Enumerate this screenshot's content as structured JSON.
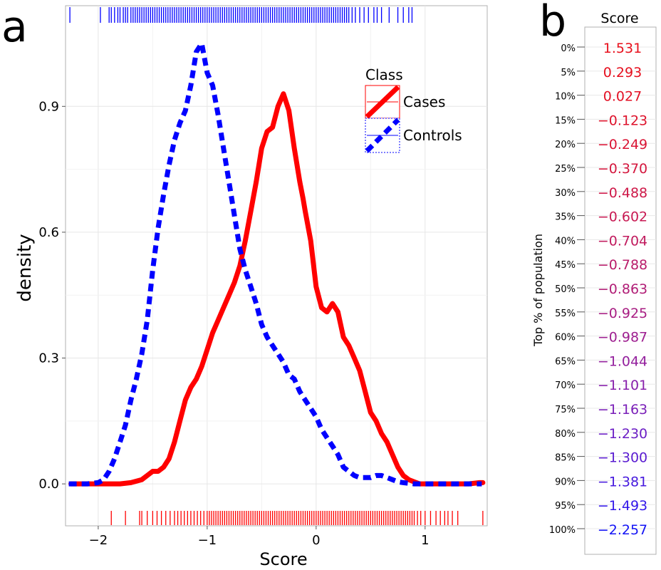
{
  "panel_a": {
    "label": "a",
    "chart_data": {
      "type": "line",
      "xlabel": "Score",
      "ylabel": "density",
      "xlim": [
        -2.3,
        1.57
      ],
      "ylim": [
        -0.1,
        1.14
      ],
      "xticks": [
        -2,
        -1,
        0,
        1
      ],
      "xtick_labels": [
        "−2",
        "−1",
        "0",
        "1"
      ],
      "yticks": [
        0.0,
        0.3,
        0.6,
        0.9
      ],
      "ytick_labels": [
        "0.0",
        "0.3",
        "0.6",
        "0.9"
      ],
      "grid": true,
      "legend": {
        "title": "Class",
        "position": "top-right",
        "entries": [
          {
            "label": "Cases",
            "color": "#ff0000",
            "style": "solid"
          },
          {
            "label": "Controls",
            "color": "#0000ff",
            "style": "dashed"
          }
        ]
      },
      "series": [
        {
          "name": "Cases",
          "color": "#ff0000",
          "style": "solid",
          "x": [
            -2.25,
            -2.0,
            -1.8,
            -1.7,
            -1.6,
            -1.55,
            -1.5,
            -1.45,
            -1.4,
            -1.35,
            -1.3,
            -1.25,
            -1.2,
            -1.15,
            -1.1,
            -1.05,
            -1.0,
            -0.95,
            -0.9,
            -0.85,
            -0.8,
            -0.75,
            -0.7,
            -0.65,
            -0.6,
            -0.55,
            -0.5,
            -0.45,
            -0.4,
            -0.35,
            -0.3,
            -0.25,
            -0.2,
            -0.15,
            -0.12,
            -0.1,
            -0.05,
            0.0,
            0.05,
            0.1,
            0.15,
            0.2,
            0.25,
            0.3,
            0.35,
            0.4,
            0.45,
            0.5,
            0.55,
            0.6,
            0.65,
            0.7,
            0.75,
            0.8,
            0.85,
            0.9,
            0.95,
            1.0,
            1.05,
            1.1,
            1.15,
            1.2,
            1.25,
            1.3,
            1.35,
            1.4,
            1.5,
            1.53
          ],
          "y": [
            0.0,
            0.0,
            0.0,
            0.003,
            0.01,
            0.02,
            0.03,
            0.03,
            0.04,
            0.06,
            0.1,
            0.15,
            0.2,
            0.23,
            0.25,
            0.28,
            0.32,
            0.36,
            0.39,
            0.42,
            0.45,
            0.48,
            0.52,
            0.58,
            0.65,
            0.72,
            0.8,
            0.84,
            0.85,
            0.9,
            0.93,
            0.89,
            0.8,
            0.72,
            0.68,
            0.65,
            0.58,
            0.47,
            0.42,
            0.41,
            0.43,
            0.41,
            0.35,
            0.33,
            0.3,
            0.27,
            0.22,
            0.17,
            0.15,
            0.12,
            0.1,
            0.07,
            0.04,
            0.02,
            0.01,
            0.005,
            0.0,
            0.0,
            0.0,
            0.0,
            0.0,
            0.0,
            0.0,
            0.0,
            0.0,
            0.0,
            0.003,
            0.003
          ]
        },
        {
          "name": "Controls",
          "color": "#0000ff",
          "style": "dashed",
          "x": [
            -2.27,
            -2.1,
            -2.0,
            -1.95,
            -1.9,
            -1.85,
            -1.8,
            -1.75,
            -1.7,
            -1.65,
            -1.6,
            -1.55,
            -1.5,
            -1.45,
            -1.4,
            -1.35,
            -1.3,
            -1.25,
            -1.2,
            -1.15,
            -1.1,
            -1.05,
            -1.0,
            -0.95,
            -0.9,
            -0.85,
            -0.8,
            -0.75,
            -0.7,
            -0.65,
            -0.6,
            -0.55,
            -0.5,
            -0.45,
            -0.4,
            -0.35,
            -0.3,
            -0.25,
            -0.2,
            -0.15,
            -0.1,
            -0.05,
            0.0,
            0.05,
            0.1,
            0.15,
            0.2,
            0.25,
            0.3,
            0.35,
            0.4,
            0.45,
            0.5,
            0.55,
            0.6,
            0.65,
            0.7,
            0.75,
            0.8,
            0.9,
            1.0,
            1.2,
            1.4,
            1.52
          ],
          "y": [
            0.0,
            0.0,
            0.003,
            0.01,
            0.03,
            0.06,
            0.1,
            0.14,
            0.2,
            0.25,
            0.31,
            0.39,
            0.51,
            0.61,
            0.69,
            0.76,
            0.82,
            0.86,
            0.89,
            0.95,
            1.03,
            1.05,
            0.98,
            0.95,
            0.88,
            0.8,
            0.72,
            0.64,
            0.56,
            0.51,
            0.47,
            0.43,
            0.38,
            0.35,
            0.33,
            0.31,
            0.29,
            0.26,
            0.25,
            0.22,
            0.2,
            0.18,
            0.16,
            0.13,
            0.11,
            0.09,
            0.07,
            0.04,
            0.03,
            0.02,
            0.015,
            0.015,
            0.015,
            0.02,
            0.02,
            0.015,
            0.01,
            0.005,
            0.003,
            0.0,
            0.0,
            0.0,
            0.0,
            0.0
          ]
        }
      ],
      "rug": {
        "Controls": [
          -2.26,
          -1.98,
          -1.9,
          -1.88,
          -1.85,
          -1.82,
          -1.8,
          -1.77,
          -1.75,
          -1.73,
          -1.7,
          -1.68,
          -1.66,
          -1.64,
          -1.62,
          -1.6,
          -1.58,
          -1.56,
          -1.54,
          -1.52,
          -1.5,
          -1.48,
          -1.46,
          -1.44,
          -1.42,
          -1.4,
          -1.38,
          -1.36,
          -1.34,
          -1.32,
          -1.3,
          -1.28,
          -1.26,
          -1.24,
          -1.22,
          -1.2,
          -1.18,
          -1.16,
          -1.14,
          -1.12,
          -1.1,
          -1.08,
          -1.06,
          -1.04,
          -1.02,
          -1.0,
          -0.98,
          -0.96,
          -0.94,
          -0.92,
          -0.9,
          -0.88,
          -0.86,
          -0.84,
          -0.82,
          -0.8,
          -0.78,
          -0.76,
          -0.74,
          -0.72,
          -0.7,
          -0.68,
          -0.66,
          -0.64,
          -0.62,
          -0.6,
          -0.58,
          -0.56,
          -0.54,
          -0.52,
          -0.5,
          -0.48,
          -0.46,
          -0.44,
          -0.42,
          -0.4,
          -0.38,
          -0.36,
          -0.34,
          -0.32,
          -0.3,
          -0.28,
          -0.26,
          -0.24,
          -0.22,
          -0.2,
          -0.18,
          -0.16,
          -0.14,
          -0.12,
          -0.1,
          -0.08,
          -0.06,
          -0.04,
          -0.02,
          0.0,
          0.02,
          0.04,
          0.06,
          0.08,
          0.1,
          0.12,
          0.14,
          0.16,
          0.18,
          0.2,
          0.22,
          0.24,
          0.26,
          0.28,
          0.3,
          0.33,
          0.36,
          0.4,
          0.44,
          0.48,
          0.53,
          0.56,
          0.6,
          0.67,
          0.75,
          0.8,
          0.85,
          0.88
        ],
        "Cases": [
          -1.88,
          -1.75,
          -1.62,
          -1.6,
          -1.55,
          -1.5,
          -1.46,
          -1.42,
          -1.38,
          -1.34,
          -1.3,
          -1.27,
          -1.24,
          -1.21,
          -1.18,
          -1.15,
          -1.12,
          -1.09,
          -1.06,
          -1.03,
          -1.0,
          -0.98,
          -0.96,
          -0.94,
          -0.92,
          -0.9,
          -0.88,
          -0.86,
          -0.84,
          -0.82,
          -0.8,
          -0.78,
          -0.76,
          -0.74,
          -0.72,
          -0.7,
          -0.68,
          -0.66,
          -0.64,
          -0.62,
          -0.6,
          -0.58,
          -0.56,
          -0.54,
          -0.52,
          -0.5,
          -0.48,
          -0.46,
          -0.44,
          -0.42,
          -0.4,
          -0.38,
          -0.36,
          -0.34,
          -0.32,
          -0.3,
          -0.28,
          -0.26,
          -0.24,
          -0.22,
          -0.2,
          -0.18,
          -0.16,
          -0.14,
          -0.12,
          -0.1,
          -0.08,
          -0.06,
          -0.04,
          -0.02,
          0.0,
          0.02,
          0.04,
          0.06,
          0.08,
          0.1,
          0.12,
          0.14,
          0.16,
          0.18,
          0.2,
          0.22,
          0.24,
          0.26,
          0.28,
          0.3,
          0.32,
          0.34,
          0.36,
          0.38,
          0.4,
          0.42,
          0.44,
          0.46,
          0.48,
          0.5,
          0.52,
          0.54,
          0.56,
          0.58,
          0.6,
          0.62,
          0.64,
          0.66,
          0.68,
          0.7,
          0.72,
          0.74,
          0.76,
          0.78,
          0.8,
          0.82,
          0.84,
          0.86,
          0.88,
          0.9,
          0.93,
          0.96,
          1.0,
          1.05,
          1.1,
          1.14,
          1.18,
          1.21,
          1.25,
          1.3,
          1.53
        ]
      }
    }
  },
  "panel_b": {
    "label": "b",
    "chart_data": {
      "type": "table",
      "column_header": "Score",
      "row_axis_label": "Top % of population",
      "rows": [
        {
          "pct": "0%",
          "score": "1.531",
          "color": "#e8101c"
        },
        {
          "pct": "5%",
          "score": "0.293",
          "color": "#e6101f"
        },
        {
          "pct": "10%",
          "score": "0.027",
          "color": "#e31125"
        },
        {
          "pct": "15%",
          "score": "−0.123",
          "color": "#de132c"
        },
        {
          "pct": "20%",
          "score": "−0.249",
          "color": "#da1535"
        },
        {
          "pct": "25%",
          "score": "−0.370",
          "color": "#d4173e"
        },
        {
          "pct": "30%",
          "score": "−0.488",
          "color": "#ce1848"
        },
        {
          "pct": "35%",
          "score": "−0.602",
          "color": "#c81a53"
        },
        {
          "pct": "40%",
          "score": "−0.704",
          "color": "#c11b5e"
        },
        {
          "pct": "45%",
          "score": "−0.788",
          "color": "#b91c6a"
        },
        {
          "pct": "50%",
          "score": "−0.863",
          "color": "#b11d76"
        },
        {
          "pct": "55%",
          "score": "−0.925",
          "color": "#a81e83"
        },
        {
          "pct": "60%",
          "score": "−0.987",
          "color": "#9e1f90"
        },
        {
          "pct": "65%",
          "score": "−1.044",
          "color": "#931f9d"
        },
        {
          "pct": "70%",
          "score": "−1.101",
          "color": "#871fab"
        },
        {
          "pct": "75%",
          "score": "−1.163",
          "color": "#7a1fb8"
        },
        {
          "pct": "80%",
          "score": "−1.230",
          "color": "#6b1ec5"
        },
        {
          "pct": "85%",
          "score": "−1.300",
          "color": "#5a1cd1"
        },
        {
          "pct": "90%",
          "score": "−1.381",
          "color": "#471ade"
        },
        {
          "pct": "95%",
          "score": "−1.493",
          "color": "#3217ea"
        },
        {
          "pct": "100%",
          "score": "−2.257",
          "color": "#1414f5"
        }
      ]
    }
  }
}
